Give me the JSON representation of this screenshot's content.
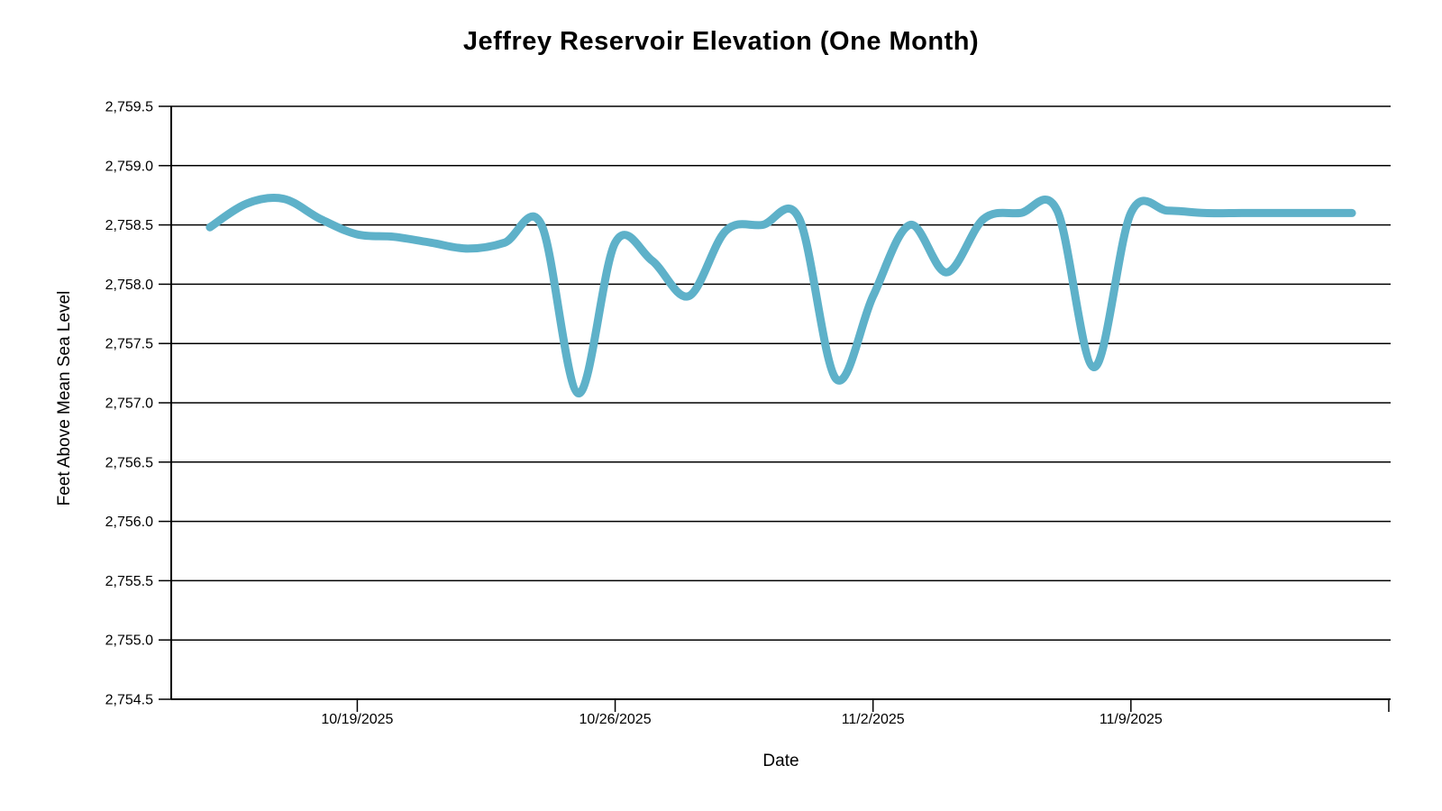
{
  "page": {
    "background": "#ffffff",
    "text_color": "#000000"
  },
  "chart_data": {
    "type": "line",
    "title": "Jeffrey Reservoir Elevation (One Month)",
    "xlabel": "Date",
    "ylabel": "Feet Above Mean Sea Level",
    "grid": true,
    "legend": "none",
    "line_color": "#5EB1C9",
    "line_width": 9,
    "axis_color": "#000000",
    "grid_color": "#000000",
    "ylim": [
      2754.5,
      2759.5
    ],
    "y_ticks": [
      {
        "value": 2759.5,
        "label": "2,759.5"
      },
      {
        "value": 2759.0,
        "label": "2,759.0"
      },
      {
        "value": 2758.5,
        "label": "2,758.5"
      },
      {
        "value": 2758.0,
        "label": "2,758.0"
      },
      {
        "value": 2757.5,
        "label": "2,757.5"
      },
      {
        "value": 2757.0,
        "label": "2,757.0"
      },
      {
        "value": 2756.5,
        "label": "2,756.5"
      },
      {
        "value": 2756.0,
        "label": "2,756.0"
      },
      {
        "value": 2755.5,
        "label": "2,755.5"
      },
      {
        "value": 2755.0,
        "label": "2,755.0"
      },
      {
        "value": 2754.5,
        "label": "2,754.5"
      }
    ],
    "x_domain_days": [
      -1.05,
      32.05
    ],
    "x_ticks": [
      {
        "day": 4,
        "label": "10/19/2025"
      },
      {
        "day": 11,
        "label": "10/26/2025"
      },
      {
        "day": 18,
        "label": "11/2/2025"
      },
      {
        "day": 25,
        "label": "11/9/2025"
      },
      {
        "day": 32,
        "label": ""
      }
    ],
    "x": [
      "10/15/2025",
      "10/16/2025",
      "10/17/2025",
      "10/18/2025",
      "10/19/2025",
      "10/20/2025",
      "10/21/2025",
      "10/22/2025",
      "10/23/2025",
      "10/24/2025",
      "10/25/2025",
      "10/26/2025",
      "10/27/2025",
      "10/28/2025",
      "10/29/2025",
      "10/30/2025",
      "10/31/2025",
      "11/1/2025",
      "11/2/2025",
      "11/3/2025",
      "11/4/2025",
      "11/5/2025",
      "11/6/2025",
      "11/7/2025",
      "11/8/2025",
      "11/9/2025",
      "11/10/2025",
      "11/11/2025",
      "11/12/2025",
      "11/13/2025",
      "11/14/2025",
      "11/15/2025"
    ],
    "values": [
      2758.48,
      2758.68,
      2758.72,
      2758.55,
      2758.42,
      2758.4,
      2758.35,
      2758.3,
      2758.35,
      2758.5,
      2757.08,
      2758.35,
      2758.2,
      2757.9,
      2758.45,
      2758.5,
      2758.55,
      2757.2,
      2757.9,
      2758.5,
      2758.1,
      2758.55,
      2758.6,
      2758.62,
      2757.3,
      2758.6,
      2758.62,
      2758.6,
      2758.6,
      2758.6,
      2758.6,
      2758.6
    ]
  }
}
